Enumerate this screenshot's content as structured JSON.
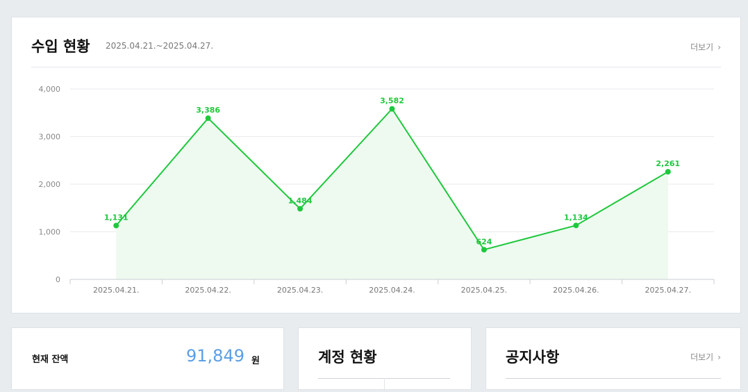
{
  "income": {
    "title": "수입 현황",
    "period": "2025.04.21.~2025.04.27.",
    "more_label": "더보기"
  },
  "chart_data": {
    "type": "area",
    "categories": [
      "2025.04.21.",
      "2025.04.22.",
      "2025.04.23.",
      "2025.04.24.",
      "2025.04.25.",
      "2025.04.26.",
      "2025.04.27."
    ],
    "values": [
      1131,
      3386,
      1484,
      3582,
      624,
      1134,
      2261
    ],
    "value_labels": [
      "1,131",
      "3,386",
      "1,484",
      "3,582",
      "624",
      "1,134",
      "2,261"
    ],
    "y_ticks": [
      0,
      1000,
      2000,
      3000,
      4000
    ],
    "y_tick_labels": [
      "0",
      "1,000",
      "2,000",
      "3,000",
      "4,000"
    ],
    "ylim": [
      0,
      4000
    ],
    "grid": true,
    "line_color": "#1ec83c",
    "fill_color": "#eef9f0",
    "title": "",
    "xlabel": "",
    "ylabel": ""
  },
  "balance": {
    "label": "현재 잔액",
    "value": "91,849",
    "unit": "원",
    "value_color": "#5b9ee6"
  },
  "account": {
    "title": "계정 현황"
  },
  "notice": {
    "title": "공지사항",
    "more_label": "더보기"
  }
}
